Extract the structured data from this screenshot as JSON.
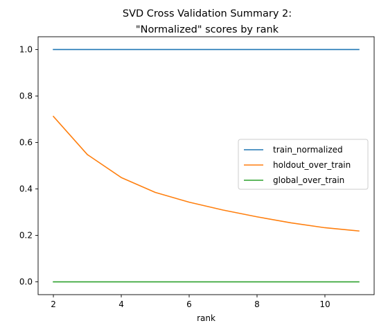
{
  "chart_data": {
    "type": "line",
    "title_line1": "SVD Cross Validation Summary 2:",
    "title_line2": "\"Normalized\" scores by rank",
    "xlabel": "rank",
    "ylabel": "",
    "xlim": [
      1.55,
      11.45
    ],
    "ylim": [
      -0.055,
      1.055
    ],
    "x_ticks": [
      2,
      4,
      6,
      8,
      10
    ],
    "y_ticks": [
      0.0,
      0.2,
      0.4,
      0.6,
      0.8,
      1.0
    ],
    "x_tick_labels": [
      "2",
      "4",
      "6",
      "8",
      "10"
    ],
    "y_tick_labels": [
      "0.0",
      "0.2",
      "0.4",
      "0.6",
      "0.8",
      "1.0"
    ],
    "grid": false,
    "legend_position": "center-right",
    "x": [
      2,
      3,
      4,
      5,
      6,
      7,
      8,
      9,
      10,
      11
    ],
    "series": [
      {
        "name": "train_normalized",
        "color": "#1f77b4",
        "values": [
          1.0,
          1.0,
          1.0,
          1.0,
          1.0,
          1.0,
          1.0,
          1.0,
          1.0,
          1.0
        ]
      },
      {
        "name": "holdout_over_train",
        "color": "#ff7f0e",
        "values": [
          0.712,
          0.548,
          0.449,
          0.385,
          0.343,
          0.309,
          0.28,
          0.254,
          0.233,
          0.219
        ]
      },
      {
        "name": "global_over_train",
        "color": "#2ca02c",
        "values": [
          0.0,
          0.0,
          0.0,
          0.0,
          0.0,
          0.0,
          0.0,
          0.0,
          0.0,
          0.0
        ]
      }
    ]
  }
}
